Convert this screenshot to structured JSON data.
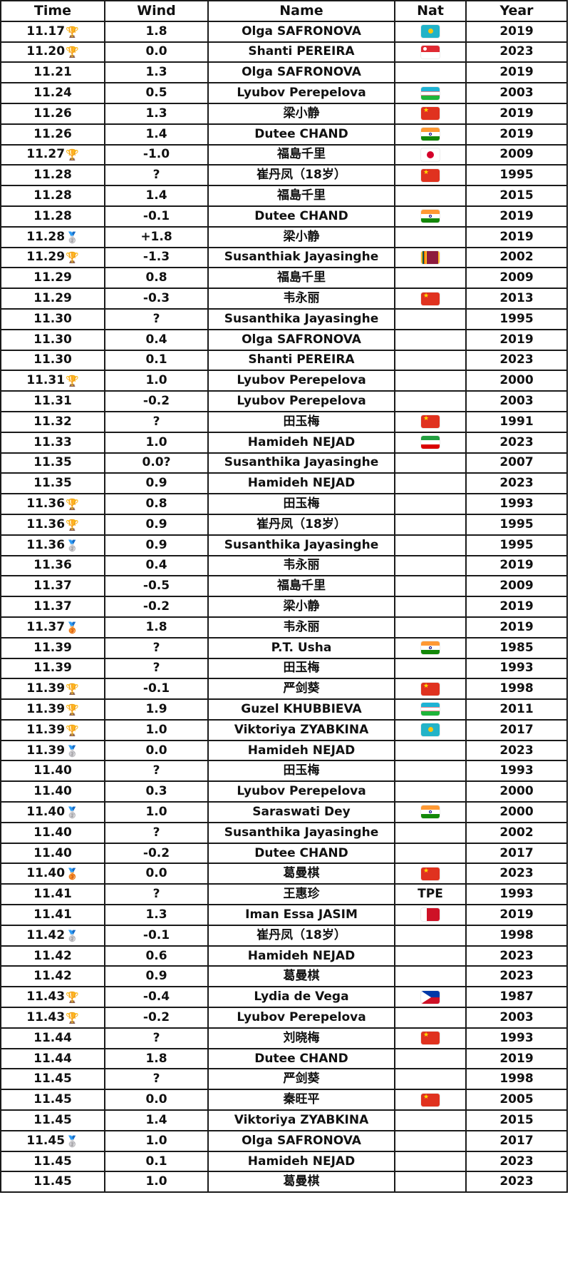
{
  "headers": [
    "Time",
    "Wind",
    "Name",
    "Nat",
    "Year"
  ],
  "medal_glyphs": {
    "gold": "🏆",
    "silver": "🥈",
    "bronze": "🥉"
  },
  "flag_colors": {
    "KAZ": "#22b3c8",
    "SGP": "#e02a33",
    "UZB": "#1eb3d4",
    "CHN": "#e0321f",
    "IND": "#ff9933",
    "JPN": "#d4002a",
    "SRI": "#8d1b3d",
    "IRI": "#239f40",
    "BRN": "#ce1126",
    "PHI": "#0038a8"
  },
  "rows": [
    {
      "time": "11.17",
      "medal": "gold",
      "wind": "1.8",
      "name": "Olga SAFRONOVA",
      "nat": "KAZ",
      "year": "2019"
    },
    {
      "time": "11.20",
      "medal": "gold",
      "wind": "0.0",
      "name": "Shanti PEREIRA",
      "nat": "SGP",
      "year": "2023"
    },
    {
      "time": "11.21",
      "medal": "",
      "wind": "1.3",
      "name": "Olga SAFRONOVA",
      "nat": "",
      "year": "2019"
    },
    {
      "time": "11.24",
      "medal": "",
      "wind": "0.5",
      "name": "Lyubov Perepelova",
      "nat": "UZB",
      "year": "2003"
    },
    {
      "time": "11.26",
      "medal": "",
      "wind": "1.3",
      "name": "梁小静",
      "nat": "CHN",
      "year": "2019"
    },
    {
      "time": "11.26",
      "medal": "",
      "wind": "1.4",
      "name": "Dutee CHAND",
      "nat": "IND",
      "year": "2019"
    },
    {
      "time": "11.27",
      "medal": "gold",
      "wind": "-1.0",
      "name": "福島千里",
      "nat": "JPN",
      "year": "2009"
    },
    {
      "time": "11.28",
      "medal": "",
      "wind": "?",
      "name": "崔丹凤（18岁）",
      "nat": "CHN",
      "year": "1995"
    },
    {
      "time": "11.28",
      "medal": "",
      "wind": "1.4",
      "name": "福島千里",
      "nat": "",
      "year": "2015"
    },
    {
      "time": "11.28",
      "medal": "",
      "wind": "-0.1",
      "name": "Dutee CHAND",
      "nat": "IND",
      "year": "2019"
    },
    {
      "time": "11.28",
      "medal": "silver",
      "wind": "+1.8",
      "name": "梁小静",
      "nat": "",
      "year": "2019"
    },
    {
      "time": "11.29",
      "medal": "gold",
      "wind": "-1.3",
      "name": "Susanthiak Jayasinghe",
      "nat": "SRI",
      "year": "2002"
    },
    {
      "time": "11.29",
      "medal": "",
      "wind": "0.8",
      "name": "福島千里",
      "nat": "",
      "year": "2009"
    },
    {
      "time": "11.29",
      "medal": "",
      "wind": "-0.3",
      "name": "韦永丽",
      "nat": "CHN",
      "year": "2013"
    },
    {
      "time": "11.30",
      "medal": "",
      "wind": "?",
      "name": "Susanthika Jayasinghe",
      "nat": "",
      "year": "1995"
    },
    {
      "time": "11.30",
      "medal": "",
      "wind": "0.4",
      "name": "Olga SAFRONOVA",
      "nat": "",
      "year": "2019"
    },
    {
      "time": "11.30",
      "medal": "",
      "wind": "0.1",
      "name": "Shanti PEREIRA",
      "nat": "",
      "year": "2023"
    },
    {
      "time": "11.31",
      "medal": "gold",
      "wind": "1.0",
      "name": "Lyubov Perepelova",
      "nat": "",
      "year": "2000"
    },
    {
      "time": "11.31",
      "medal": "",
      "wind": "-0.2",
      "name": "Lyubov Perepelova",
      "nat": "",
      "year": "2003"
    },
    {
      "time": "11.32",
      "medal": "",
      "wind": "?",
      "name": "田玉梅",
      "nat": "CHN",
      "year": "1991"
    },
    {
      "time": "11.33",
      "medal": "",
      "wind": "1.0",
      "name": "Hamideh NEJAD",
      "nat": "IRI",
      "year": "2023"
    },
    {
      "time": "11.35",
      "medal": "",
      "wind": "0.0?",
      "name": "Susanthika Jayasinghe",
      "nat": "",
      "year": "2007"
    },
    {
      "time": "11.35",
      "medal": "",
      "wind": "0.9",
      "name": "Hamideh NEJAD",
      "nat": "",
      "year": "2023"
    },
    {
      "time": "11.36",
      "medal": "gold",
      "wind": "0.8",
      "name": "田玉梅",
      "nat": "",
      "year": "1993"
    },
    {
      "time": "11.36",
      "medal": "gold",
      "wind": "0.9",
      "name": "崔丹凤（18岁）",
      "nat": "",
      "year": "1995"
    },
    {
      "time": "11.36",
      "medal": "silver",
      "wind": "0.9",
      "name": "Susanthika Jayasinghe",
      "nat": "",
      "year": "1995"
    },
    {
      "time": "11.36",
      "medal": "",
      "wind": "0.4",
      "name": "韦永丽",
      "nat": "",
      "year": "2019"
    },
    {
      "time": "11.37",
      "medal": "",
      "wind": "-0.5",
      "name": "福島千里",
      "nat": "",
      "year": "2009"
    },
    {
      "time": "11.37",
      "medal": "",
      "wind": "-0.2",
      "name": "梁小静",
      "nat": "",
      "year": "2019"
    },
    {
      "time": "11.37",
      "medal": "bronze",
      "wind": "1.8",
      "name": "韦永丽",
      "nat": "",
      "year": "2019"
    },
    {
      "time": "11.39",
      "medal": "",
      "wind": "?",
      "name": "P.T. Usha",
      "nat": "IND",
      "year": "1985"
    },
    {
      "time": "11.39",
      "medal": "",
      "wind": "?",
      "name": "田玉梅",
      "nat": "",
      "year": "1993"
    },
    {
      "time": "11.39",
      "medal": "gold",
      "wind": "-0.1",
      "name": "严剑葵",
      "nat": "CHN",
      "year": "1998"
    },
    {
      "time": "11.39",
      "medal": "gold",
      "wind": "1.9",
      "name": "Guzel KHUBBIEVA",
      "nat": "UZB",
      "year": "2011"
    },
    {
      "time": "11.39",
      "medal": "gold",
      "wind": "1.0",
      "name": "Viktoriya ZYABKINA",
      "nat": "KAZ",
      "year": "2017"
    },
    {
      "time": "11.39",
      "medal": "silver",
      "wind": "0.0",
      "name": "Hamideh NEJAD",
      "nat": "",
      "year": "2023"
    },
    {
      "time": "11.40",
      "medal": "",
      "wind": "?",
      "name": "田玉梅",
      "nat": "",
      "year": "1993"
    },
    {
      "time": "11.40",
      "medal": "",
      "wind": "0.3",
      "name": "Lyubov Perepelova",
      "nat": "",
      "year": "2000"
    },
    {
      "time": "11.40",
      "medal": "silver",
      "wind": "1.0",
      "name": "Saraswati Dey",
      "nat": "IND",
      "year": "2000"
    },
    {
      "time": "11.40",
      "medal": "",
      "wind": "?",
      "name": "Susanthika Jayasinghe",
      "nat": "",
      "year": "2002"
    },
    {
      "time": "11.40",
      "medal": "",
      "wind": "-0.2",
      "name": "Dutee CHAND",
      "nat": "",
      "year": "2017"
    },
    {
      "time": "11.40",
      "medal": "bronze",
      "wind": "0.0",
      "name": "葛曼棋",
      "nat": "CHN",
      "year": "2023"
    },
    {
      "time": "11.41",
      "medal": "",
      "wind": "?",
      "name": "王惠珍",
      "nat": "TPE",
      "year": "1993"
    },
    {
      "time": "11.41",
      "medal": "",
      "wind": "1.3",
      "name": "Iman Essa JASIM",
      "nat": "BRN",
      "year": "2019"
    },
    {
      "time": "11.42",
      "medal": "silver",
      "wind": "-0.1",
      "name": "崔丹凤（18岁）",
      "nat": "",
      "year": "1998"
    },
    {
      "time": "11.42",
      "medal": "",
      "wind": "0.6",
      "name": "Hamideh NEJAD",
      "nat": "",
      "year": "2023"
    },
    {
      "time": "11.42",
      "medal": "",
      "wind": "0.9",
      "name": "葛曼棋",
      "nat": "",
      "year": "2023"
    },
    {
      "time": "11.43",
      "medal": "gold",
      "wind": "-0.4",
      "name": "Lydia de Vega",
      "nat": "PHI",
      "year": "1987"
    },
    {
      "time": "11.43",
      "medal": "gold",
      "wind": "-0.2",
      "name": "Lyubov Perepelova",
      "nat": "",
      "year": "2003"
    },
    {
      "time": "11.44",
      "medal": "",
      "wind": "?",
      "name": "刘晓梅",
      "nat": "CHN",
      "year": "1993"
    },
    {
      "time": "11.44",
      "medal": "",
      "wind": "1.8",
      "name": "Dutee CHAND",
      "nat": "",
      "year": "2019"
    },
    {
      "time": "11.45",
      "medal": "",
      "wind": "?",
      "name": "严剑葵",
      "nat": "",
      "year": "1998"
    },
    {
      "time": "11.45",
      "medal": "",
      "wind": "0.0",
      "name": "秦旺平",
      "nat": "CHN",
      "year": "2005"
    },
    {
      "time": "11.45",
      "medal": "",
      "wind": "1.4",
      "name": "Viktoriya ZYABKINA",
      "nat": "",
      "year": "2015"
    },
    {
      "time": "11.45",
      "medal": "silver",
      "wind": "1.0",
      "name": "Olga SAFRONOVA",
      "nat": "",
      "year": "2017"
    },
    {
      "time": "11.45",
      "medal": "",
      "wind": "0.1",
      "name": "Hamideh NEJAD",
      "nat": "",
      "year": "2023"
    },
    {
      "time": "11.45",
      "medal": "",
      "wind": "1.0",
      "name": "葛曼棋",
      "nat": "",
      "year": "2023"
    }
  ]
}
